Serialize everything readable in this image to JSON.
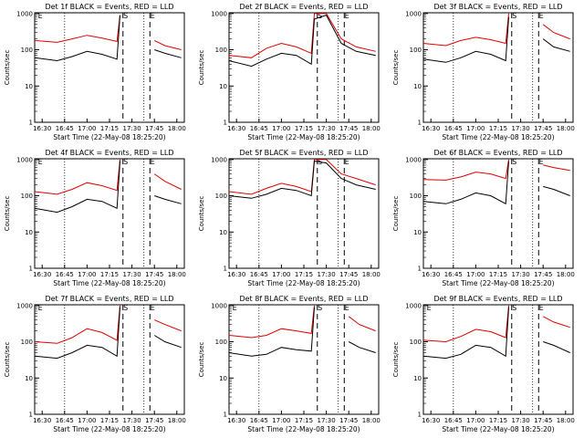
{
  "chart_data": [
    {
      "type": "line",
      "title": "Det 1f BLACK = Events, RED = LLD",
      "ylabel": "Counts/sec",
      "xlabel": "Start Time (22-May-08 18:25:20)",
      "x_ticks": [
        "16:30",
        "16:45",
        "17:00",
        "17:15",
        "17:30",
        "17:45",
        "18:00"
      ],
      "y_ticks": [
        "1",
        "10",
        "100",
        "1000"
      ],
      "yscale": "log",
      "ylim": [
        1,
        1000
      ],
      "xlim": [
        "16:25",
        "18:05"
      ],
      "markers": [
        "E",
        "S",
        "E"
      ],
      "series": [
        {
          "name": "RED = LLD",
          "color": "#e00000",
          "x": [
            "16:25",
            "16:40",
            "16:50",
            "17:00",
            "17:10",
            "17:20",
            "17:22",
            "17:42",
            "17:45",
            "17:52",
            "18:03"
          ],
          "values": [
            180,
            160,
            200,
            250,
            210,
            170,
            900,
            null,
            180,
            130,
            100
          ]
        },
        {
          "name": "BLACK = Events",
          "color": "#000000",
          "x": [
            "16:25",
            "16:40",
            "16:50",
            "17:00",
            "17:10",
            "17:20",
            "17:22",
            "17:42",
            "17:45",
            "17:52",
            "18:03"
          ],
          "values": [
            60,
            50,
            65,
            90,
            75,
            55,
            900,
            null,
            100,
            80,
            60
          ]
        }
      ]
    },
    {
      "type": "line",
      "title": "Det 2f BLACK = Events, RED = LLD",
      "ylabel": "Counts/sec",
      "xlabel": "Start Time (22-May-08 18:25:20)",
      "x_ticks": [
        "16:30",
        "16:45",
        "17:00",
        "17:15",
        "17:30",
        "17:45",
        "18:00"
      ],
      "y_ticks": [
        "1",
        "10",
        "100",
        "1000"
      ],
      "yscale": "log",
      "ylim": [
        1,
        1000
      ],
      "xlim": [
        "16:25",
        "18:05"
      ],
      "markers": [
        "S",
        "E"
      ],
      "series": [
        {
          "name": "RED = LLD",
          "color": "#e00000",
          "x": [
            "16:25",
            "16:40",
            "16:50",
            "17:00",
            "17:10",
            "17:20",
            "17:22",
            "17:30",
            "17:40",
            "17:50",
            "18:03"
          ],
          "values": [
            70,
            60,
            110,
            150,
            120,
            80,
            1000,
            1000,
            200,
            120,
            90
          ]
        },
        {
          "name": "BLACK = Events",
          "color": "#000000",
          "x": [
            "16:25",
            "16:40",
            "16:50",
            "17:00",
            "17:10",
            "17:20",
            "17:22",
            "17:30",
            "17:40",
            "17:50",
            "18:03"
          ],
          "values": [
            50,
            35,
            55,
            80,
            70,
            40,
            700,
            900,
            150,
            90,
            70
          ]
        }
      ]
    },
    {
      "type": "line",
      "title": "Det 3f BLACK = Events, RED = LLD",
      "ylabel": "Counts/sec",
      "xlabel": "Start Time (22-May-08 18:25:20)",
      "x_ticks": [
        "16:30",
        "16:45",
        "17:00",
        "17:15",
        "17:30",
        "17:45",
        "18:00"
      ],
      "y_ticks": [
        "1",
        "10",
        "100",
        "1000"
      ],
      "yscale": "log",
      "ylim": [
        1,
        1000
      ],
      "xlim": [
        "16:25",
        "18:05"
      ],
      "markers": [
        "S",
        "E"
      ],
      "series": [
        {
          "name": "RED = LLD",
          "color": "#e00000",
          "x": [
            "16:25",
            "16:40",
            "16:50",
            "17:00",
            "17:10",
            "17:20",
            "17:22",
            "17:42",
            "17:45",
            "17:52",
            "18:03"
          ],
          "values": [
            150,
            130,
            180,
            220,
            190,
            150,
            1000,
            null,
            500,
            300,
            200
          ]
        },
        {
          "name": "BLACK = Events",
          "color": "#000000",
          "x": [
            "16:25",
            "16:40",
            "16:50",
            "17:00",
            "17:10",
            "17:20",
            "17:22",
            "17:42",
            "17:45",
            "17:52",
            "18:03"
          ],
          "values": [
            55,
            45,
            60,
            90,
            75,
            50,
            800,
            null,
            200,
            120,
            90
          ]
        }
      ]
    },
    {
      "type": "line",
      "title": "Det 4f BLACK = Events, RED = LLD",
      "ylabel": "Counts/sec",
      "xlabel": "Start Time (22-May-08 18:25:20)",
      "x_ticks": [
        "16:30",
        "16:45",
        "17:00",
        "17:15",
        "17:30",
        "17:45",
        "18:00"
      ],
      "y_ticks": [
        "1",
        "10",
        "100",
        "1000"
      ],
      "yscale": "log",
      "ylim": [
        1,
        1000
      ],
      "xlim": [
        "16:25",
        "18:05"
      ],
      "markers": [
        "E",
        "S",
        "E"
      ],
      "series": [
        {
          "name": "RED = LLD",
          "color": "#e00000",
          "x": [
            "16:25",
            "16:40",
            "16:50",
            "17:00",
            "17:10",
            "17:20",
            "17:22",
            "17:42",
            "17:45",
            "17:52",
            "18:03"
          ],
          "values": [
            130,
            110,
            150,
            230,
            190,
            140,
            1000,
            null,
            400,
            250,
            150
          ]
        },
        {
          "name": "BLACK = Events",
          "color": "#000000",
          "x": [
            "16:25",
            "16:40",
            "16:50",
            "17:00",
            "17:10",
            "17:20",
            "17:22",
            "17:42",
            "17:45",
            "17:52",
            "18:03"
          ],
          "values": [
            45,
            35,
            50,
            80,
            70,
            45,
            900,
            null,
            100,
            80,
            60
          ]
        }
      ]
    },
    {
      "type": "line",
      "title": "Det 5f BLACK = Events, RED = LLD",
      "ylabel": "Counts/sec",
      "xlabel": "Start Time (22-May-08 18:25:20)",
      "x_ticks": [
        "16:30",
        "16:45",
        "17:00",
        "17:15",
        "17:30",
        "17:45",
        "18:00"
      ],
      "y_ticks": [
        "1",
        "10",
        "100",
        "1000"
      ],
      "yscale": "log",
      "ylim": [
        1,
        1000
      ],
      "xlim": [
        "16:25",
        "18:05"
      ],
      "markers": [
        "S",
        "E"
      ],
      "series": [
        {
          "name": "RED = LLD",
          "color": "#e00000",
          "x": [
            "16:25",
            "16:40",
            "16:50",
            "17:00",
            "17:10",
            "17:20",
            "17:22",
            "17:30",
            "17:40",
            "17:50",
            "18:03"
          ],
          "values": [
            130,
            110,
            160,
            220,
            180,
            130,
            1000,
            1000,
            400,
            300,
            200
          ]
        },
        {
          "name": "BLACK = Events",
          "color": "#000000",
          "x": [
            "16:25",
            "16:40",
            "16:50",
            "17:00",
            "17:10",
            "17:20",
            "17:22",
            "17:30",
            "17:40",
            "17:50",
            "18:03"
          ],
          "values": [
            100,
            85,
            110,
            160,
            140,
            100,
            900,
            800,
            300,
            200,
            150
          ]
        }
      ]
    },
    {
      "type": "line",
      "title": "Det 6f BLACK = Events, RED = LLD",
      "ylabel": "Counts/sec",
      "xlabel": "Start Time (22-May-08 18:25:20)",
      "x_ticks": [
        "16:30",
        "16:45",
        "17:00",
        "17:15",
        "17:30",
        "17:45",
        "18:00"
      ],
      "y_ticks": [
        "1",
        "10",
        "100",
        "1000"
      ],
      "yscale": "log",
      "ylim": [
        1,
        1000
      ],
      "xlim": [
        "16:25",
        "18:05"
      ],
      "markers": [
        "S",
        "E"
      ],
      "series": [
        {
          "name": "RED = LLD",
          "color": "#e00000",
          "x": [
            "16:25",
            "16:40",
            "16:50",
            "17:00",
            "17:10",
            "17:20",
            "17:22",
            "17:42",
            "17:45",
            "17:52",
            "18:03"
          ],
          "values": [
            280,
            270,
            330,
            450,
            400,
            300,
            1000,
            null,
            700,
            600,
            500
          ]
        },
        {
          "name": "BLACK = Events",
          "color": "#000000",
          "x": [
            "16:25",
            "16:40",
            "16:50",
            "17:00",
            "17:10",
            "17:20",
            "17:22",
            "17:42",
            "17:45",
            "17:52",
            "18:03"
          ],
          "values": [
            70,
            60,
            80,
            120,
            100,
            60,
            900,
            null,
            180,
            150,
            100
          ]
        }
      ]
    },
    {
      "type": "line",
      "title": "Det 7f BLACK = Events, RED = LLD",
      "ylabel": "Counts/sec",
      "xlabel": "Start Time (22-May-08 18:25:20)",
      "x_ticks": [
        "16:30",
        "16:45",
        "17:00",
        "17:15",
        "17:30",
        "17:45",
        "18:00"
      ],
      "y_ticks": [
        "1",
        "10",
        "100",
        "1000"
      ],
      "yscale": "log",
      "ylim": [
        1,
        1000
      ],
      "xlim": [
        "16:25",
        "18:05"
      ],
      "markers": [
        "E",
        "S",
        "E"
      ],
      "series": [
        {
          "name": "RED = LLD",
          "color": "#e00000",
          "x": [
            "16:25",
            "16:40",
            "16:50",
            "17:00",
            "17:10",
            "17:20",
            "17:22",
            "17:42",
            "17:45",
            "17:52",
            "18:03"
          ],
          "values": [
            100,
            90,
            130,
            230,
            180,
            110,
            1000,
            null,
            400,
            300,
            200
          ]
        },
        {
          "name": "BLACK = Events",
          "color": "#000000",
          "x": [
            "16:25",
            "16:40",
            "16:50",
            "17:00",
            "17:10",
            "17:20",
            "17:22",
            "17:42",
            "17:45",
            "17:52",
            "18:03"
          ],
          "values": [
            40,
            35,
            50,
            80,
            70,
            40,
            900,
            null,
            150,
            100,
            70
          ]
        }
      ]
    },
    {
      "type": "line",
      "title": "Det 8f BLACK = Events, RED = LLD",
      "ylabel": "Counts/sec",
      "xlabel": "Start Time (22-May-08 18:25:20)",
      "x_ticks": [
        "16:30",
        "16:45",
        "17:00",
        "17:15",
        "17:30",
        "17:45",
        "18:00"
      ],
      "y_ticks": [
        "1",
        "10",
        "100",
        "1000"
      ],
      "yscale": "log",
      "ylim": [
        1,
        1000
      ],
      "xlim": [
        "16:25",
        "18:05"
      ],
      "markers": [
        "E",
        "S",
        "E"
      ],
      "series": [
        {
          "name": "RED = LLD",
          "color": "#e00000",
          "x": [
            "16:25",
            "16:40",
            "16:50",
            "17:00",
            "17:10",
            "17:20",
            "17:22",
            "17:42",
            "17:45",
            "17:52",
            "18:03"
          ],
          "values": [
            150,
            130,
            150,
            230,
            200,
            170,
            1000,
            null,
            500,
            300,
            200
          ]
        },
        {
          "name": "BLACK = Events",
          "color": "#000000",
          "x": [
            "16:25",
            "16:40",
            "16:50",
            "17:00",
            "17:10",
            "17:20",
            "17:22",
            "17:42",
            "17:45",
            "17:52",
            "18:03"
          ],
          "values": [
            50,
            40,
            45,
            70,
            60,
            55,
            900,
            null,
            100,
            70,
            50
          ]
        }
      ]
    },
    {
      "type": "line",
      "title": "Det 9f BLACK = Events, RED = LLD",
      "ylabel": "Counts/sec",
      "xlabel": "Start Time (22-May-08 18:25:20)",
      "x_ticks": [
        "16:30",
        "16:45",
        "17:00",
        "17:15",
        "17:30",
        "17:45",
        "18:00"
      ],
      "y_ticks": [
        "1",
        "10",
        "100",
        "1000"
      ],
      "yscale": "log",
      "ylim": [
        1,
        1000
      ],
      "xlim": [
        "16:25",
        "18:05"
      ],
      "markers": [
        "E",
        "S",
        "E"
      ],
      "series": [
        {
          "name": "RED = LLD",
          "color": "#e00000",
          "x": [
            "16:25",
            "16:40",
            "16:50",
            "17:00",
            "17:10",
            "17:20",
            "17:22",
            "17:42",
            "17:45",
            "17:52",
            "18:03"
          ],
          "values": [
            110,
            100,
            140,
            220,
            190,
            130,
            1000,
            null,
            500,
            350,
            250
          ]
        },
        {
          "name": "BLACK = Events",
          "color": "#000000",
          "x": [
            "16:25",
            "16:40",
            "16:50",
            "17:00",
            "17:10",
            "17:20",
            "17:22",
            "17:42",
            "17:45",
            "17:52",
            "18:03"
          ],
          "values": [
            40,
            35,
            45,
            80,
            70,
            40,
            900,
            null,
            100,
            80,
            50
          ]
        }
      ]
    }
  ]
}
